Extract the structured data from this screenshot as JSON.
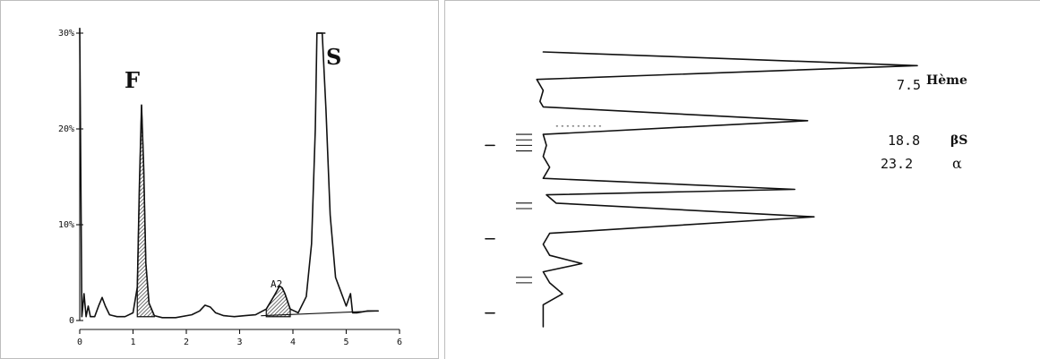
{
  "chart_data": [
    {
      "type": "line",
      "title": "",
      "xlabel": "",
      "ylabel": "",
      "xlim": [
        0,
        6
      ],
      "ylim": [
        0,
        30
      ],
      "x_ticks": [
        "0",
        "1",
        "2",
        "3",
        "4",
        "5",
        "6"
      ],
      "y_ticks": [
        "0",
        "10%",
        "20%",
        "30%"
      ],
      "grid": false,
      "peak_labels": {
        "F": "F",
        "A2": "A2",
        "S": "S"
      },
      "series": [
        {
          "x": [
            0.0,
            0.04,
            0.08,
            0.12,
            0.16,
            0.2,
            0.28,
            0.36,
            0.42,
            0.48,
            0.56,
            0.7,
            0.85,
            1.0,
            1.08,
            1.12,
            1.16,
            1.2,
            1.24,
            1.3,
            1.4,
            1.55,
            1.8,
            2.1,
            2.25,
            2.35,
            2.45,
            2.55,
            2.7,
            2.9,
            3.1,
            3.3,
            3.5,
            3.65,
            3.75,
            3.8,
            3.85,
            3.95,
            4.1,
            4.25,
            4.35,
            4.42,
            4.45,
            4.5,
            4.55,
            4.62,
            4.7,
            4.8,
            5.0,
            5.08,
            5.12,
            5.2,
            5.4,
            5.6
          ],
          "y": [
            30.5,
            0.4,
            2.8,
            0.4,
            1.5,
            0.4,
            0.4,
            1.6,
            2.4,
            1.5,
            0.6,
            0.4,
            0.4,
            0.8,
            3.5,
            14.0,
            22.5,
            16.0,
            6.0,
            1.8,
            0.5,
            0.3,
            0.3,
            0.6,
            1.0,
            1.6,
            1.4,
            0.8,
            0.5,
            0.4,
            0.5,
            0.6,
            1.2,
            2.6,
            3.6,
            3.4,
            2.8,
            1.2,
            0.8,
            2.5,
            8.0,
            20.0,
            30.0,
            30.0,
            30.0,
            22.0,
            11.0,
            4.5,
            1.5,
            2.8,
            0.8,
            0.8,
            1.0,
            1.0
          ]
        }
      ]
    },
    {
      "type": "line",
      "title": "",
      "orientation": "vertical",
      "peaks": [
        {
          "value": "7.5",
          "label": "Hème"
        },
        {
          "value": "18.8",
          "label": "βS"
        },
        {
          "value": "23.2",
          "label": "α"
        }
      ],
      "series": [
        {
          "t": [
            0.0,
            0.05,
            0.1,
            0.14,
            0.18,
            0.2,
            0.25,
            0.3,
            0.34,
            0.38,
            0.42,
            0.46,
            0.5,
            0.52,
            0.55,
            0.6,
            0.66,
            0.7,
            0.74,
            0.77,
            0.8,
            0.84,
            0.88,
            0.92,
            0.96,
            1.0
          ],
          "v": [
            0.2,
            6.0,
            0.1,
            0.2,
            0.15,
            0.2,
            4.3,
            0.2,
            0.25,
            0.2,
            0.3,
            0.2,
            4.1,
            0.25,
            0.4,
            4.4,
            0.3,
            0.2,
            0.3,
            0.8,
            0.2,
            0.3,
            0.5,
            0.2,
            0.2,
            0.2
          ]
        }
      ]
    }
  ]
}
